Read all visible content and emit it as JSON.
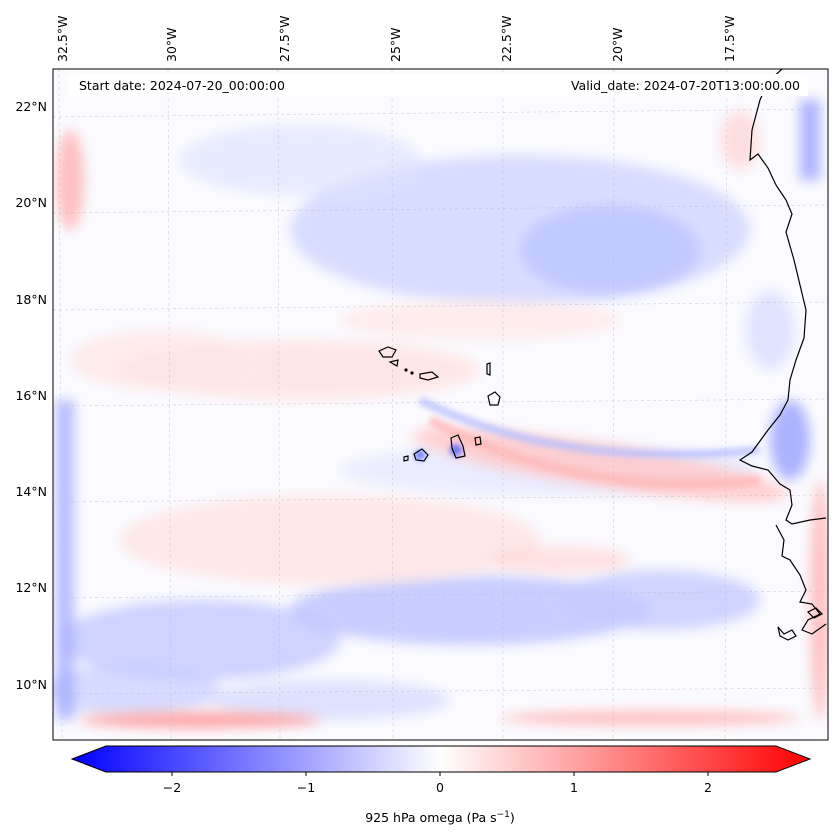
{
  "header": {
    "start_label": "Start date: 2024-07-20_00:00:00",
    "valid_label": "Valid_date: 2024-07-20T13:00:00.00"
  },
  "map": {
    "variable": "925 hPa omega",
    "lon_ticks": [
      "32.5°W",
      "30°W",
      "27.5°W",
      "25°W",
      "22.5°W",
      "20°W",
      "17.5°W"
    ],
    "lat_ticks": [
      "22°N",
      "20°N",
      "18°N",
      "16°N",
      "14°N",
      "12°N",
      "10°N"
    ],
    "features": [
      "Cape Verde islands",
      "West African coastline"
    ]
  },
  "colorbar": {
    "tick_labels": [
      "−2",
      "−1",
      "0",
      "1",
      "2"
    ],
    "label_prefix": "925 hPa omega (Pa s",
    "label_exp": "−1",
    "label_suffix": ")",
    "min": -2.6,
    "max": 2.6,
    "neg_color": "#0000ff",
    "zero_color": "#ffffff",
    "pos_color": "#ff0000"
  }
}
